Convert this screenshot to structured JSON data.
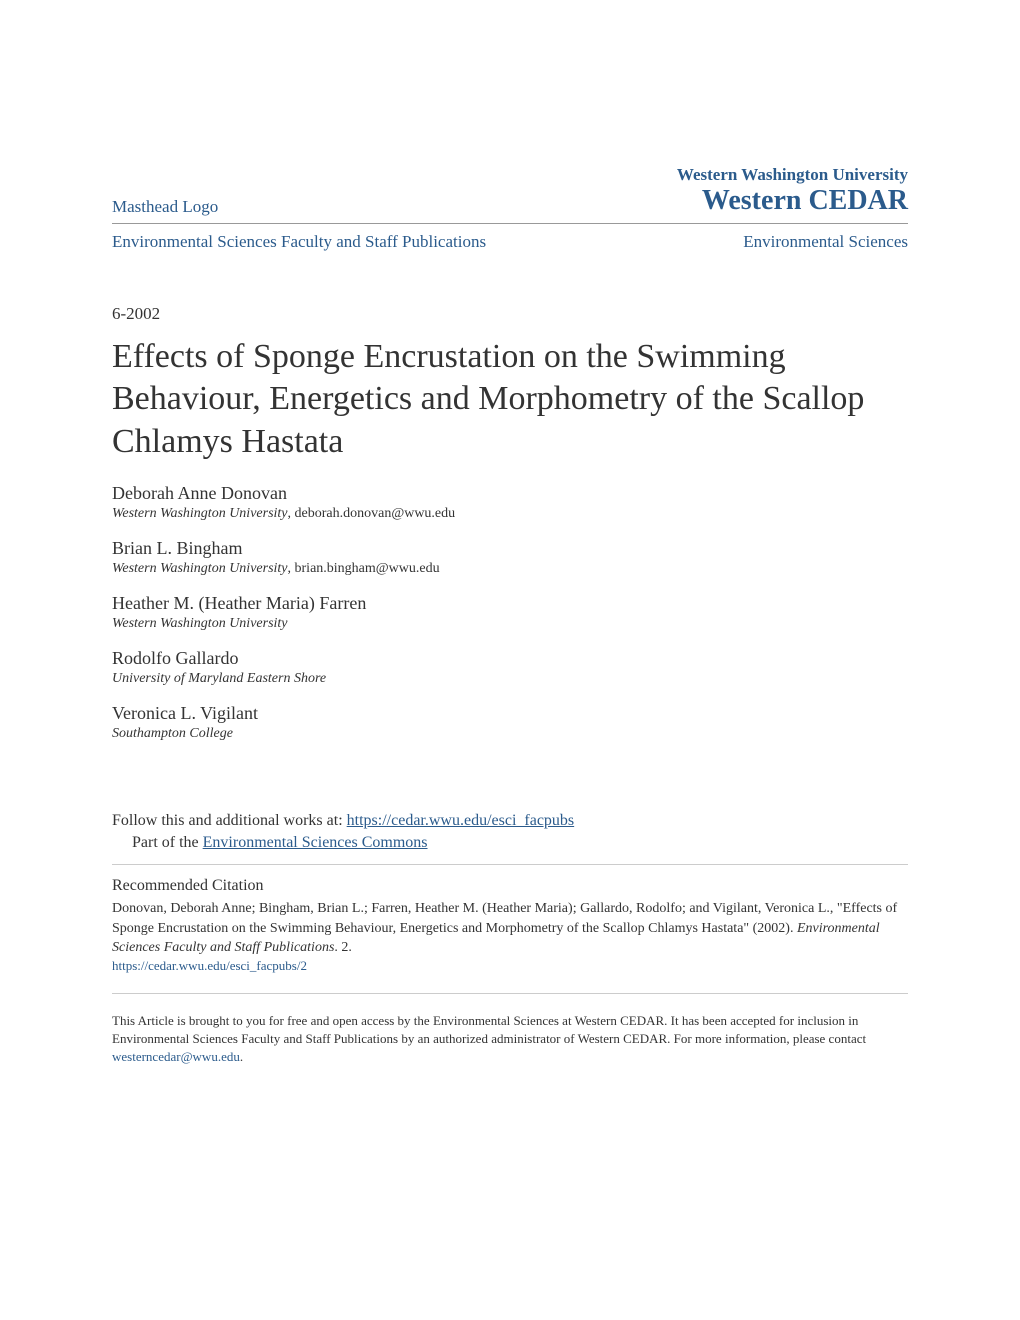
{
  "header": {
    "masthead_logo": "Masthead Logo",
    "university": "Western Washington University",
    "repository": "Western CEDAR"
  },
  "subheader": {
    "left": "Environmental Sciences Faculty and Staff Publications",
    "right": "Environmental Sciences"
  },
  "date": "6-2002",
  "title": "Effects of Sponge Encrustation on the Swimming Behaviour, Energetics and Morphometry of the Scallop Chlamys Hastata",
  "authors": [
    {
      "name": "Deborah Anne Donovan",
      "affiliation": "Western Washington University",
      "email": ", deborah.donovan@wwu.edu"
    },
    {
      "name": "Brian L. Bingham",
      "affiliation": "Western Washington University",
      "email": ", brian.bingham@wwu.edu"
    },
    {
      "name": "Heather M. (Heather Maria) Farren",
      "affiliation": "Western Washington University",
      "email": ""
    },
    {
      "name": "Rodolfo Gallardo",
      "affiliation": "University of Maryland Eastern Shore",
      "email": ""
    },
    {
      "name": "Veronica L. Vigilant",
      "affiliation": "Southampton College",
      "email": ""
    }
  ],
  "follow": {
    "prefix": "Follow this and additional works at: ",
    "url": "https://cedar.wwu.edu/esci_facpubs",
    "part_prefix": "Part of the ",
    "part_link": "Environmental Sciences Commons"
  },
  "citation": {
    "heading": "Recommended Citation",
    "text": "Donovan, Deborah Anne; Bingham, Brian L.; Farren, Heather M. (Heather Maria); Gallardo, Rodolfo; and Vigilant, Veronica L., \"Effects of Sponge Encrustation on the Swimming Behaviour, Energetics and Morphometry of the Scallop Chlamys Hastata\" (2002). ",
    "publication": "Environmental Sciences Faculty and Staff Publications",
    "suffix": ". 2.",
    "link": "https://cedar.wwu.edu/esci_facpubs/2"
  },
  "footer": {
    "text": "This Article is brought to you for free and open access by the Environmental Sciences at Western CEDAR. It has been accepted for inclusion in Environmental Sciences Faculty and Staff Publications by an authorized administrator of Western CEDAR. For more information, please contact ",
    "email": "westerncedar@wwu.edu",
    "period": "."
  },
  "colors": {
    "link": "#2b5b8c",
    "text": "#333333",
    "border": "#999999",
    "background": "#ffffff"
  }
}
